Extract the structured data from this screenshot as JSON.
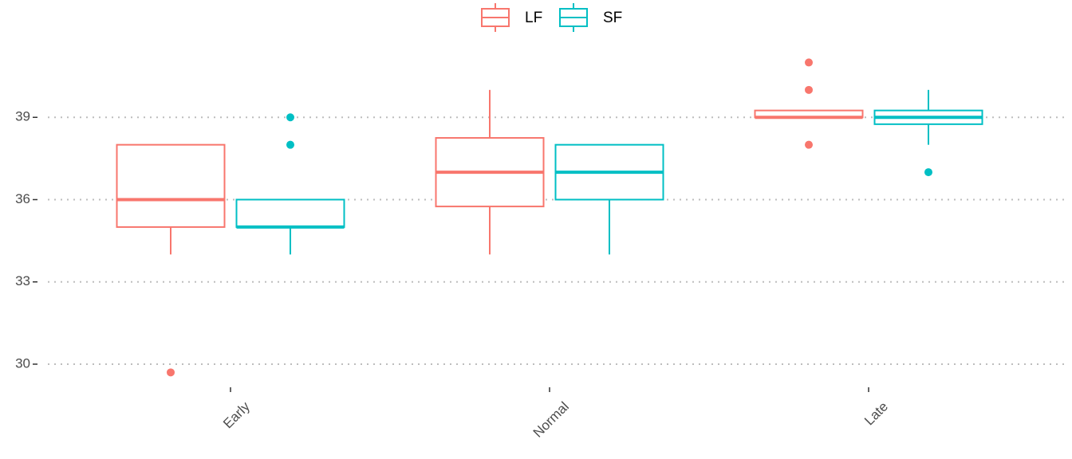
{
  "chart_data": {
    "type": "boxplot",
    "categories": [
      "Early",
      "Normal",
      "Late"
    ],
    "series": [
      {
        "name": "LF",
        "color": "#F8766D",
        "boxes": [
          {
            "low": 34,
            "q1": 35,
            "median": 36,
            "q3": 38,
            "high": 38,
            "outliers": [
              29.7
            ]
          },
          {
            "low": 34,
            "q1": 35.75,
            "median": 37,
            "q3": 38.25,
            "high": 40,
            "outliers": []
          },
          {
            "low": 39,
            "q1": 39,
            "median": 39,
            "q3": 39.25,
            "high": 39.25,
            "outliers": [
              41,
              40,
              38
            ]
          }
        ]
      },
      {
        "name": "SF",
        "color": "#00BFC4",
        "boxes": [
          {
            "low": 34,
            "q1": 35,
            "median": 35,
            "q3": 36,
            "high": 36,
            "outliers": [
              39,
              38
            ]
          },
          {
            "low": 34,
            "q1": 36,
            "median": 37,
            "q3": 38,
            "high": 38,
            "outliers": []
          },
          {
            "low": 38,
            "q1": 38.75,
            "median": 39,
            "q3": 39.25,
            "high": 40,
            "outliers": [
              37
            ]
          }
        ]
      }
    ],
    "ylim": [
      29.5,
      41.5
    ],
    "yticks": [
      30,
      33,
      36,
      39
    ],
    "grid": true,
    "legend": "top"
  }
}
